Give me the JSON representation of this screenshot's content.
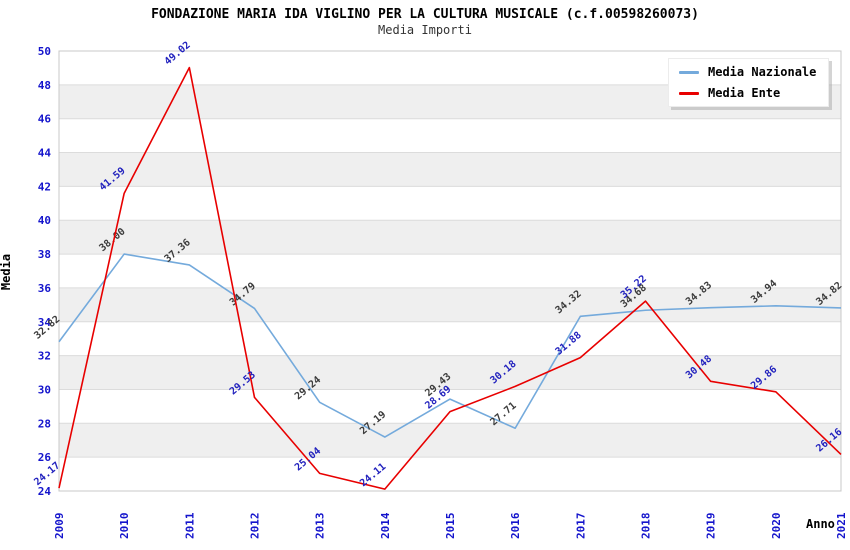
{
  "header": {
    "title": "FONDAZIONE MARIA IDA VIGLINO PER LA CULTURA MUSICALE (c.f.00598260073)",
    "subtitle": "Media Importi"
  },
  "legend": {
    "items": [
      {
        "label": "Media Nazionale",
        "color": "#74AADC"
      },
      {
        "label": "Media Ente",
        "color": "#E80000"
      }
    ]
  },
  "chart_data": {
    "type": "line",
    "title": "FONDAZIONE MARIA IDA VIGLINO PER LA CULTURA MUSICALE (c.f.00598260073)",
    "subtitle": "Media Importi",
    "xlabel": "Anno",
    "ylabel": "Media",
    "x": [
      2009,
      2010,
      2011,
      2012,
      2013,
      2014,
      2015,
      2016,
      2017,
      2018,
      2019,
      2020,
      2021
    ],
    "series": [
      {
        "name": "Media Nazionale",
        "color": "#74AADC",
        "label_color": "#3C3C3C",
        "values": [
          32.82,
          38.0,
          37.36,
          34.79,
          29.24,
          27.19,
          29.43,
          27.71,
          34.32,
          34.68,
          34.83,
          34.94,
          34.82
        ]
      },
      {
        "name": "Media Ente",
        "color": "#E80000",
        "label_color": "#2222BE",
        "values": [
          24.17,
          41.59,
          49.02,
          29.53,
          25.04,
          24.11,
          28.69,
          30.18,
          31.88,
          35.22,
          30.48,
          29.86,
          26.16
        ]
      }
    ],
    "ylim": [
      24,
      50
    ],
    "ytick_step": 2,
    "grid": true,
    "legend_position": "top-right",
    "style": {
      "axis_label_color": "#1414CC",
      "band_color": "#EFEFEF",
      "grid_color": "#DCDCDC",
      "border_color": "#C8C8C8"
    }
  }
}
